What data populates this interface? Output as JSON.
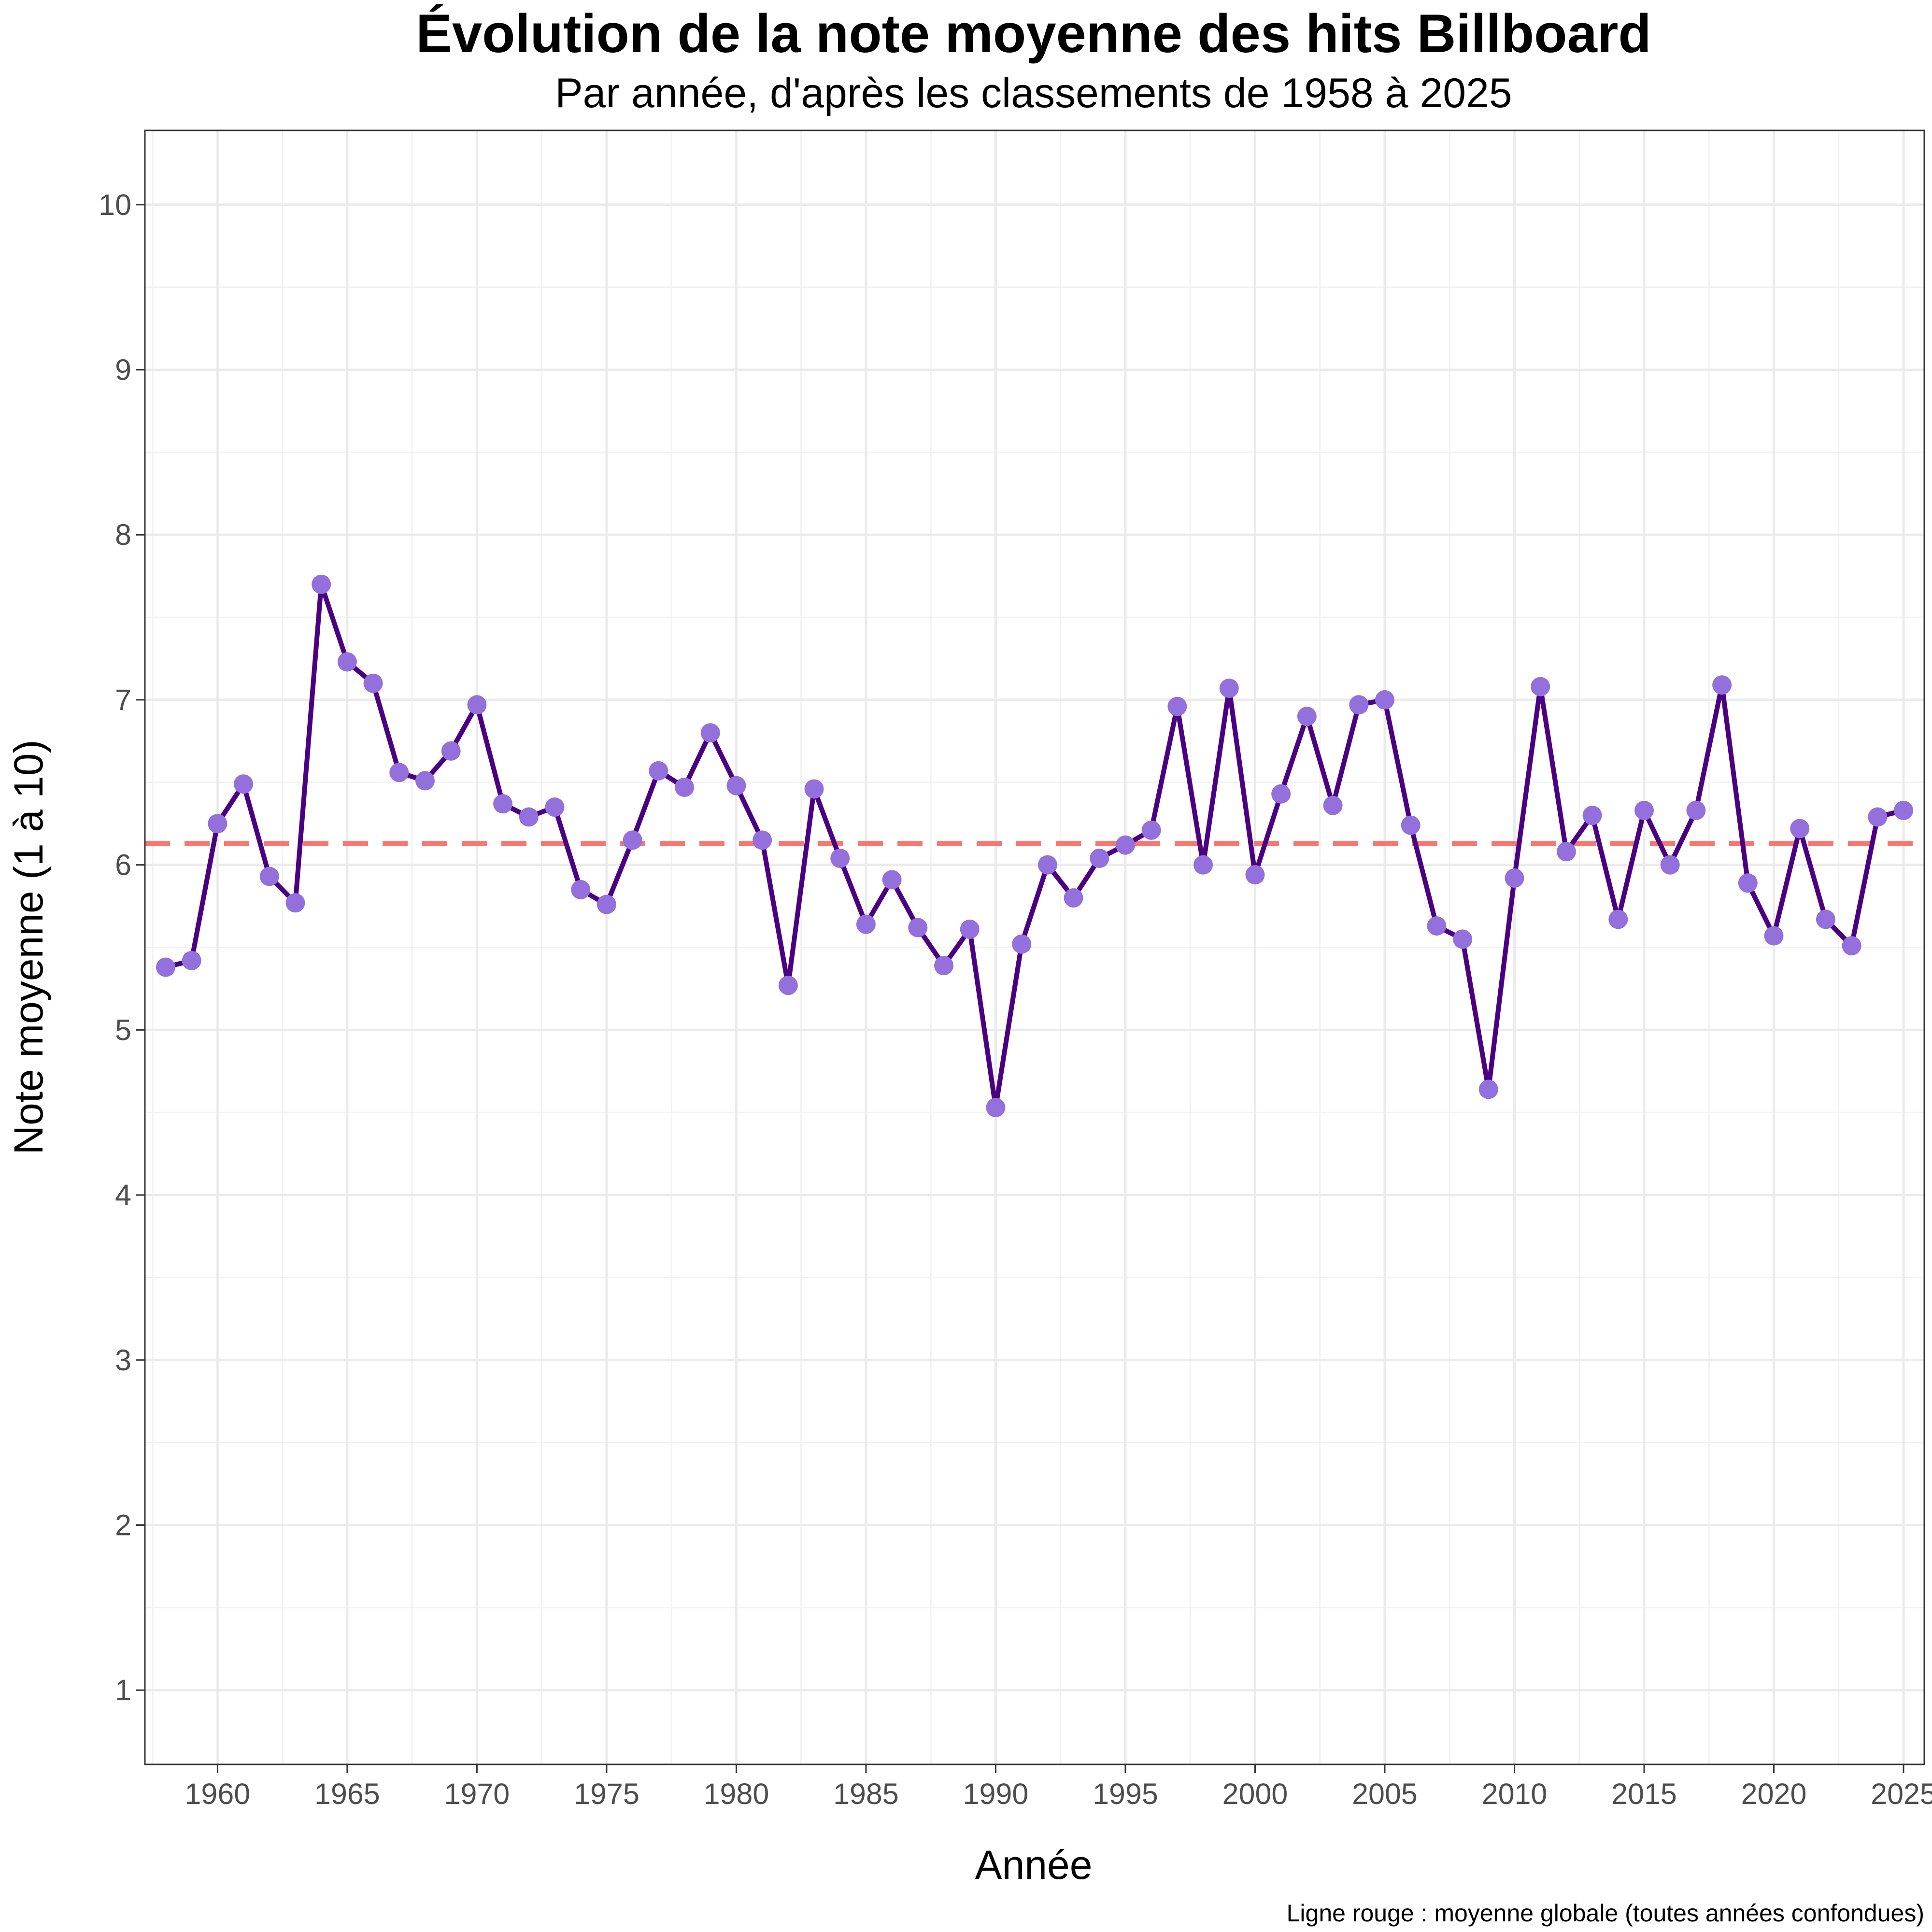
{
  "chart_data": {
    "type": "line",
    "title": "Évolution de la note moyenne des hits Billboard",
    "subtitle": "Par année, d'après les classements de 1958 à 2025",
    "xlabel": "Année",
    "ylabel": "Note moyenne (1 à 10)",
    "caption": "Ligne rouge : moyenne globale (toutes années confondues)",
    "xlim": [
      1957.2,
      2025.8
    ],
    "ylim": [
      0.55,
      10.45
    ],
    "x_ticks": [
      1960,
      1965,
      1970,
      1975,
      1980,
      1985,
      1990,
      1995,
      2000,
      2005,
      2010,
      2015,
      2020,
      2025
    ],
    "y_ticks": [
      1,
      2,
      3,
      4,
      5,
      6,
      7,
      8,
      9,
      10
    ],
    "grid": true,
    "reference_line": {
      "y": 6.13,
      "color": "#F8766D",
      "style": "dashed"
    },
    "line_color": "#4B0082",
    "point_color": "#9370DB",
    "series": [
      {
        "x": [
          1958,
          1959,
          1960,
          1961,
          1962,
          1963,
          1964,
          1965,
          1966,
          1967,
          1968,
          1969,
          1970,
          1971,
          1972,
          1973,
          1974,
          1975,
          1976,
          1977,
          1978,
          1979,
          1980,
          1981,
          1982,
          1983,
          1984,
          1985,
          1986,
          1987,
          1988,
          1989,
          1990,
          1991,
          1992,
          1993,
          1994,
          1995,
          1996,
          1997,
          1998,
          1999,
          2000,
          2001,
          2002,
          2003,
          2004,
          2005,
          2006,
          2007,
          2008,
          2009,
          2010,
          2011,
          2012,
          2013,
          2014,
          2015,
          2016,
          2017,
          2018,
          2019,
          2020,
          2021,
          2022,
          2023,
          2024,
          2025
        ],
        "values": [
          5.38,
          5.42,
          6.25,
          6.49,
          5.93,
          5.77,
          7.7,
          7.23,
          7.1,
          6.56,
          6.51,
          6.69,
          6.97,
          6.37,
          6.29,
          6.35,
          5.85,
          5.76,
          6.15,
          6.57,
          6.47,
          6.8,
          6.48,
          6.15,
          5.27,
          6.46,
          6.04,
          5.64,
          5.91,
          5.62,
          5.39,
          5.61,
          4.53,
          5.52,
          6.0,
          5.8,
          6.04,
          6.12,
          6.21,
          6.96,
          6.0,
          7.07,
          5.94,
          6.43,
          6.9,
          6.36,
          6.97,
          7.0,
          6.24,
          5.63,
          5.55,
          4.64,
          5.92,
          7.08,
          6.08,
          6.3,
          5.67,
          6.33,
          6.0,
          6.33,
          7.09,
          5.89,
          5.57,
          6.22,
          5.67,
          5.51,
          6.29,
          6.33
        ]
      }
    ]
  }
}
